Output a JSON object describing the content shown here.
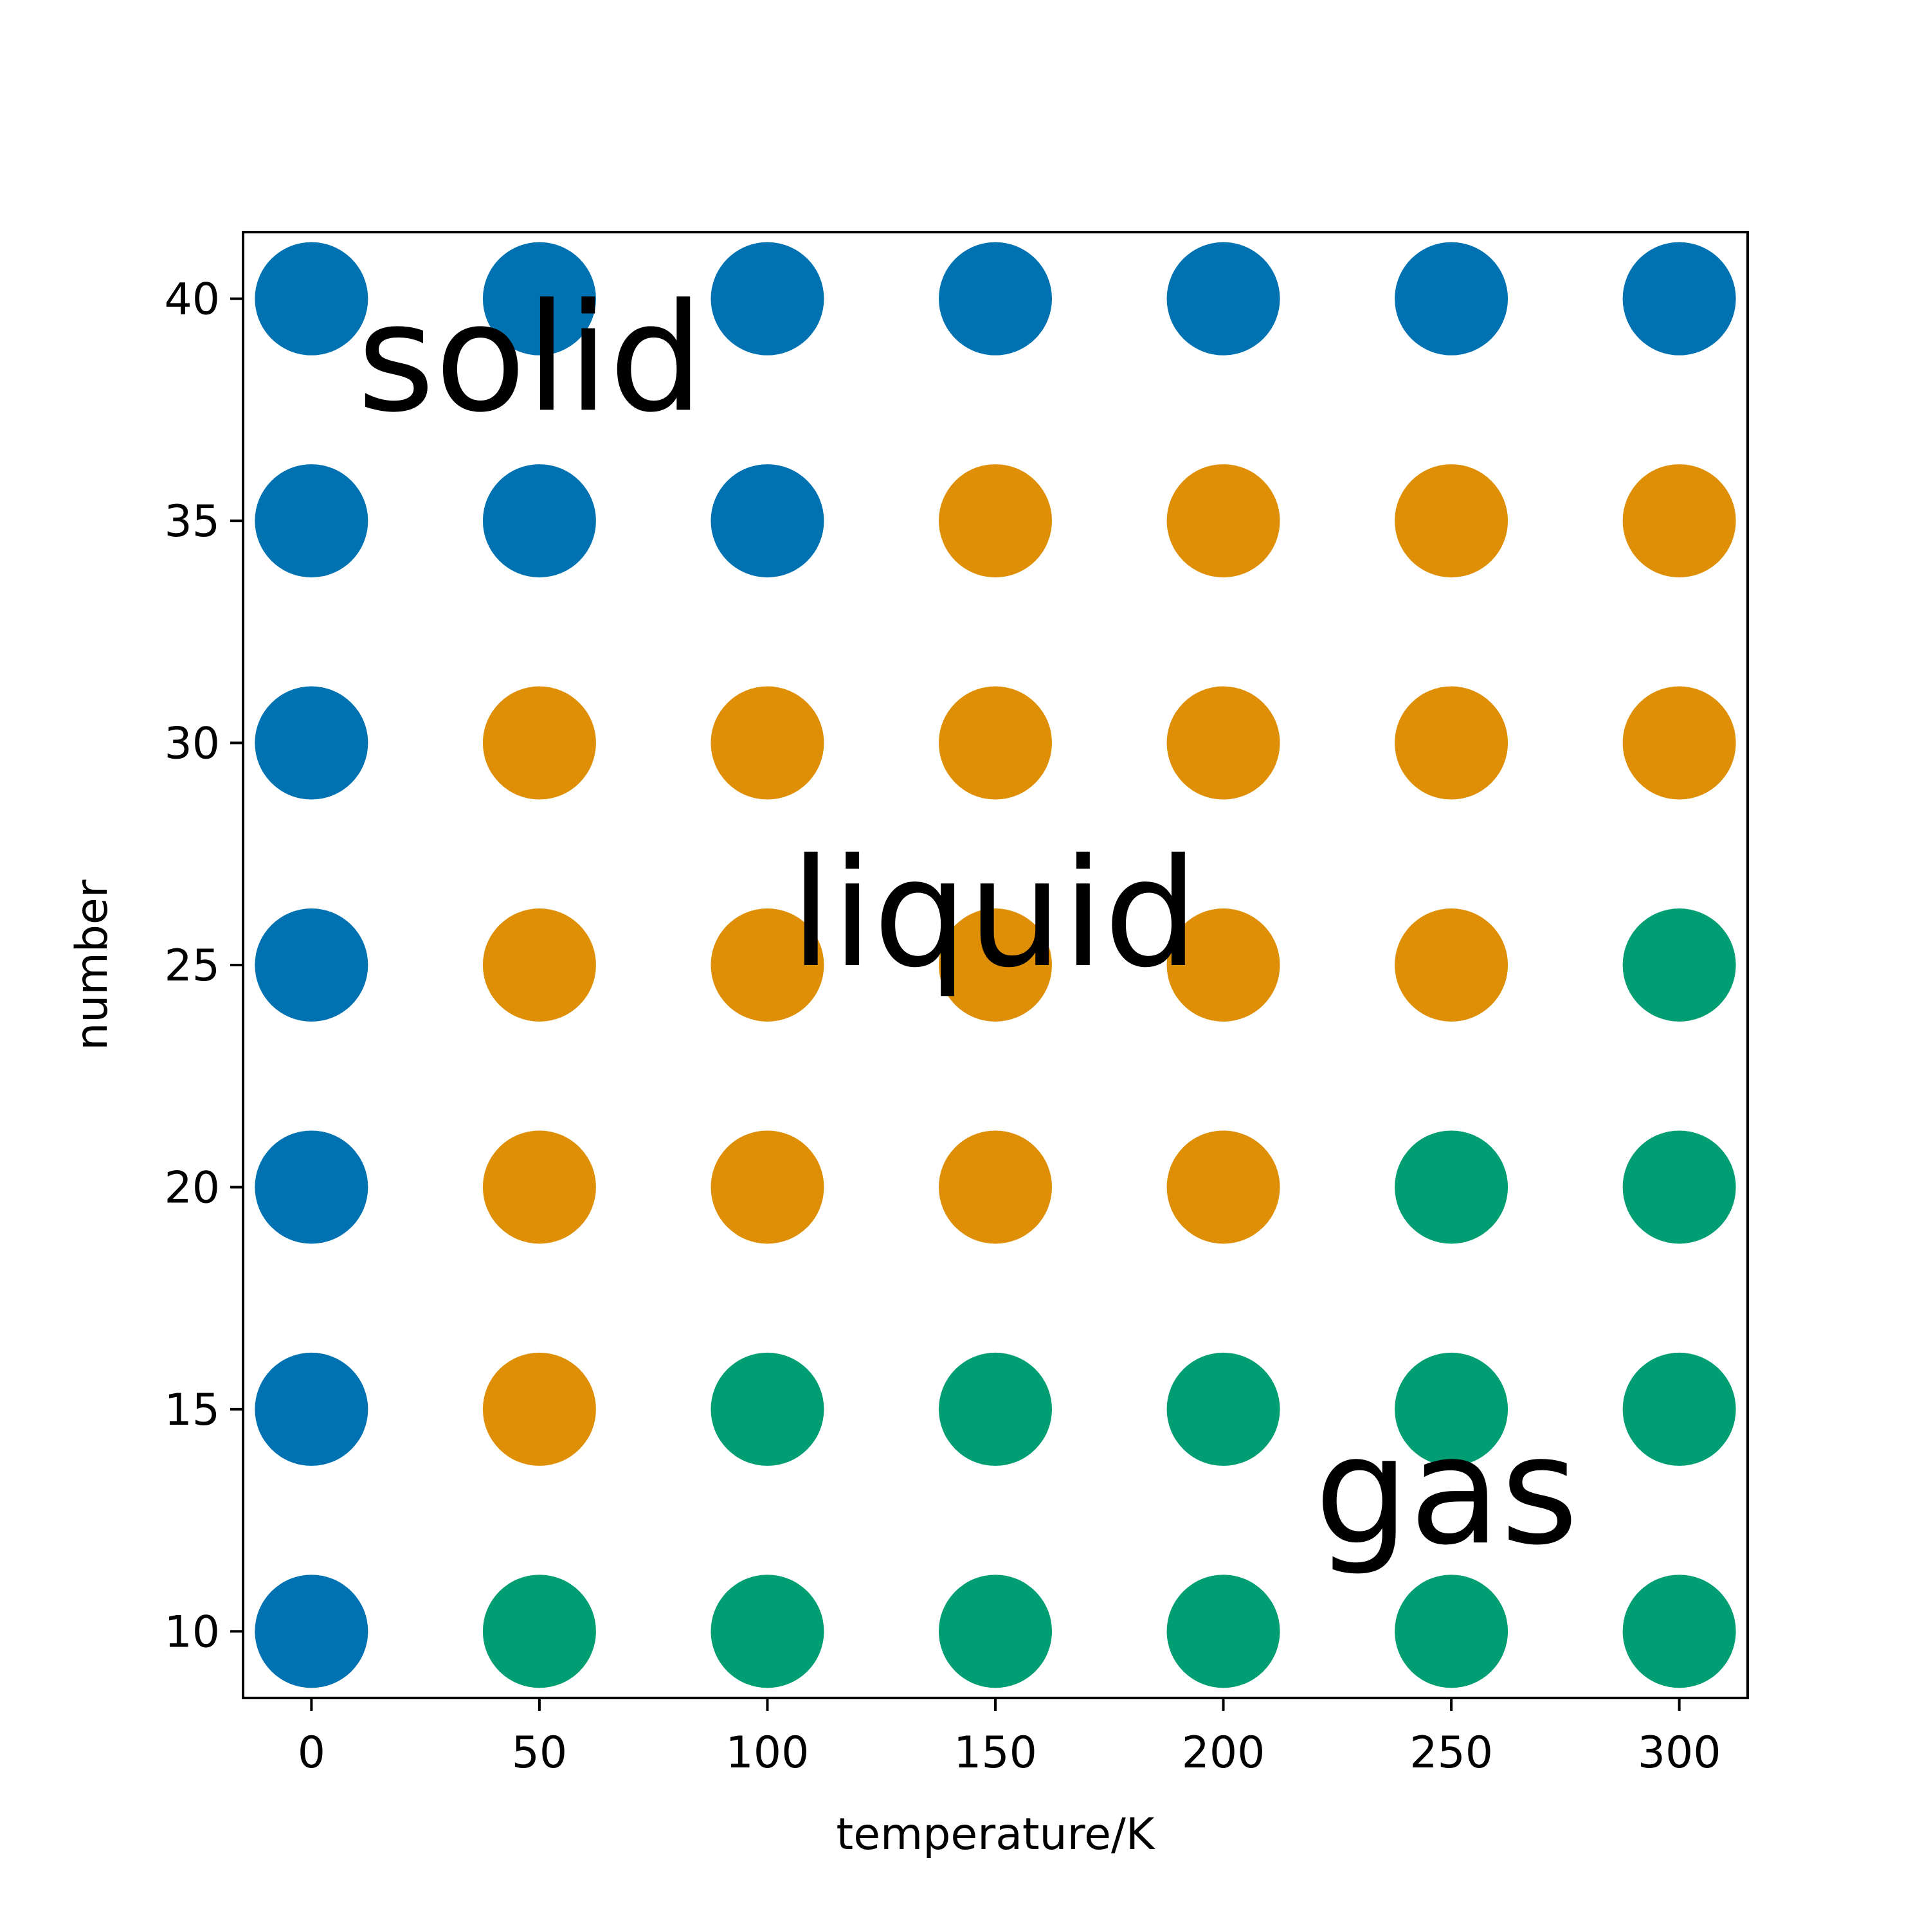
{
  "chart_data": {
    "type": "scatter",
    "title": "",
    "xlabel": "temperature/K",
    "ylabel": "number",
    "xlim": [
      -15,
      315
    ],
    "ylim": [
      8.5,
      41.5
    ],
    "xticks": [
      0,
      50,
      100,
      150,
      200,
      250,
      300
    ],
    "yticks": [
      10,
      15,
      20,
      25,
      30,
      35,
      40
    ],
    "grid": false,
    "x": [
      0,
      50,
      100,
      150,
      200,
      250,
      300
    ],
    "y": [
      10,
      15,
      20,
      25,
      30,
      35,
      40
    ],
    "series": [
      {
        "phase": "solid",
        "color": "#0072b2",
        "points": [
          [
            0,
            10
          ],
          [
            0,
            15
          ],
          [
            0,
            20
          ],
          [
            0,
            25
          ],
          [
            0,
            30
          ],
          [
            0,
            35
          ],
          [
            0,
            40
          ],
          [
            50,
            35
          ],
          [
            50,
            40
          ],
          [
            100,
            35
          ],
          [
            100,
            40
          ],
          [
            150,
            40
          ],
          [
            200,
            40
          ],
          [
            250,
            40
          ],
          [
            300,
            40
          ]
        ]
      },
      {
        "phase": "liquid",
        "color": "#de8f05",
        "points": [
          [
            50,
            15
          ],
          [
            50,
            20
          ],
          [
            50,
            25
          ],
          [
            50,
            30
          ],
          [
            100,
            20
          ],
          [
            100,
            25
          ],
          [
            100,
            30
          ],
          [
            150,
            20
          ],
          [
            150,
            25
          ],
          [
            150,
            30
          ],
          [
            150,
            35
          ],
          [
            200,
            20
          ],
          [
            200,
            25
          ],
          [
            200,
            30
          ],
          [
            200,
            35
          ],
          [
            250,
            25
          ],
          [
            250,
            30
          ],
          [
            250,
            35
          ],
          [
            300,
            30
          ],
          [
            300,
            35
          ]
        ]
      },
      {
        "phase": "gas",
        "color": "#029e73",
        "points": [
          [
            50,
            10
          ],
          [
            100,
            10
          ],
          [
            100,
            15
          ],
          [
            150,
            10
          ],
          [
            150,
            15
          ],
          [
            200,
            10
          ],
          [
            200,
            15
          ],
          [
            250,
            10
          ],
          [
            250,
            15
          ],
          [
            250,
            20
          ],
          [
            300,
            10
          ],
          [
            300,
            15
          ],
          [
            300,
            20
          ],
          [
            300,
            25
          ]
        ]
      }
    ],
    "annotations": [
      {
        "text": "solid",
        "x": 10,
        "y": 37.5
      },
      {
        "text": "liquid",
        "x": 105,
        "y": 25
      },
      {
        "text": "gas",
        "x": 220,
        "y": 12
      }
    ]
  }
}
